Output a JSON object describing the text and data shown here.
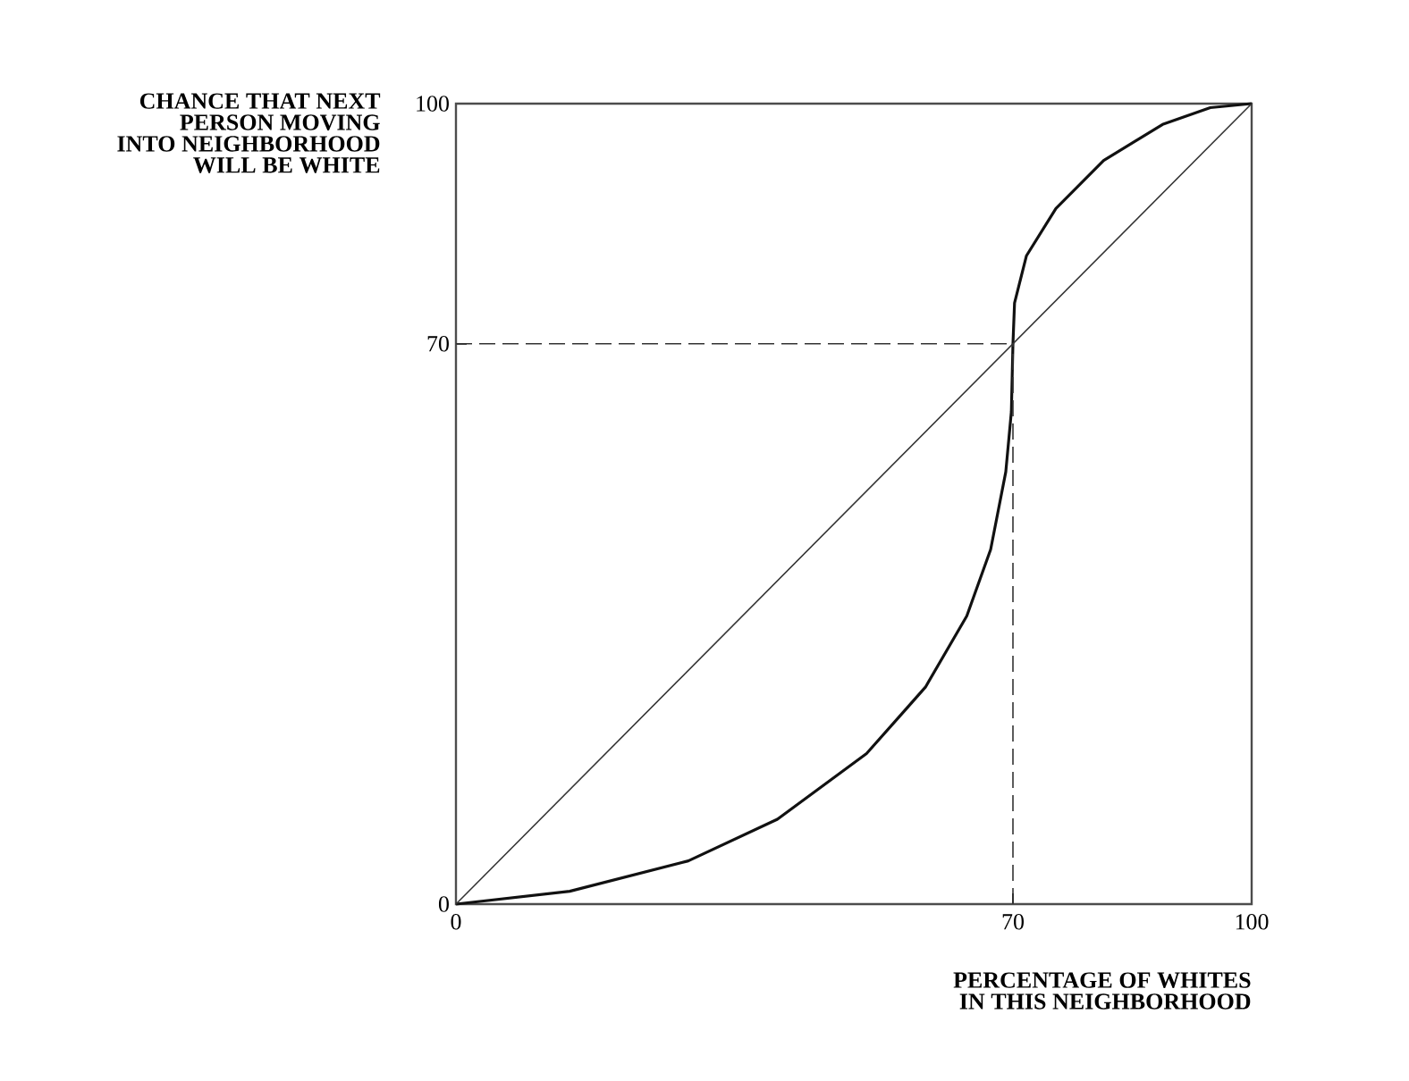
{
  "chart_data": {
    "type": "line",
    "xlabel": "PERCENTAGE OF WHITES IN THIS NEIGHBORHOOD",
    "ylabel": "CHANCE THAT NEXT PERSON MOVING INTO NEIGHBORHOOD WILL BE WHITE",
    "xlim": [
      0,
      100
    ],
    "ylim": [
      0,
      100
    ],
    "xticks": [
      0,
      70,
      100
    ],
    "yticks": [
      0,
      70,
      100
    ],
    "marker": "none",
    "series": [
      {
        "color": "#111111",
        "line_style": "solid",
        "x": [
          0,
          14.3,
          29.2,
          40.4,
          51.6,
          59.0,
          64.2,
          67.2,
          69.1,
          69.8,
          70,
          70.2,
          71.7,
          75.4,
          81.4,
          88.8,
          94.8,
          100
        ],
        "values": [
          0,
          1.6,
          5.4,
          10.6,
          18.8,
          27.1,
          36.0,
          44.3,
          54.0,
          61.5,
          70,
          75.1,
          81.0,
          86.9,
          92.9,
          97.4,
          99.5,
          100
        ]
      },
      {
        "color": "#333333",
        "line_style": "solid",
        "x": [
          0,
          100
        ],
        "values": [
          0,
          100
        ]
      },
      {
        "color": "#333333",
        "line_style": "dashed",
        "x": [
          0,
          70
        ],
        "values": [
          70,
          70
        ]
      },
      {
        "color": "#333333",
        "line_style": "dashed",
        "x": [
          70,
          70
        ],
        "values": [
          0,
          70
        ]
      }
    ]
  }
}
